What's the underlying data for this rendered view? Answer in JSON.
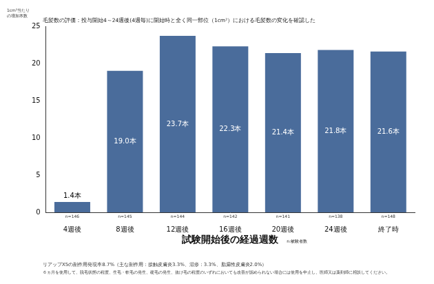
{
  "chart_data": {
    "type": "bar",
    "title": "毛髪数の評価：投与開始4～24週後(4週毎)に開始時と全く同一部位（1cm²）における毛髪数の変化を確認した",
    "y_label": "1cm²当たり\nの増加本数",
    "x_label": "試験開始後の経過週数",
    "x_label_note": "n:被験者数",
    "categories": [
      "4週後",
      "8週後",
      "12週後",
      "16週後",
      "20週後",
      "24週後",
      "終了時"
    ],
    "values": [
      1.4,
      19.0,
      23.7,
      22.3,
      21.4,
      21.8,
      21.6
    ],
    "value_labels": [
      "1.4本",
      "19.0本",
      "23.7本",
      "22.3本",
      "21.4本",
      "21.8本",
      "21.6本"
    ],
    "n_labels": [
      "n=146",
      "n=145",
      "n=144",
      "n=142",
      "n=141",
      "n=138",
      "n=148"
    ],
    "footnotes": [
      "リアップX5の副作用発現率8.7%（主な副作用：接触皮膚炎3.3%、湿疹：3.3%、脂漏性皮膚炎2.0%）",
      "６ヵ月を使用して、脱毛状態の程度、生毛・軟毛の発生、硬毛の発生、抜け毛の程度のいずれにおいても改善が認められない場合には使用を中止し、医師又は薬剤師に相談してください。"
    ],
    "color": "#4a6c9b",
    "ylim": [
      0,
      25
    ],
    "yticks": [
      0,
      5,
      10,
      15,
      20,
      25
    ],
    "grid": false,
    "data_labels": true
  }
}
